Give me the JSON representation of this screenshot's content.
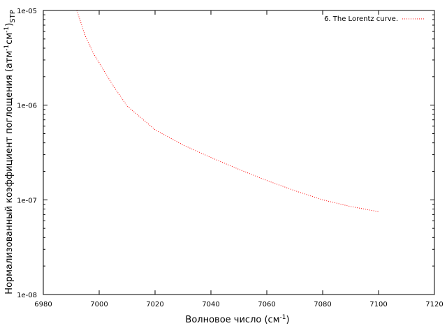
{
  "chart_data": {
    "type": "line",
    "xlabel": "Волновое число (см",
    "xlabel_sup": "-1",
    "xlabel_end": ")",
    "ylabel": "Нормализованный коэффициент поглощения (атм",
    "ylabel_sup1": "-1",
    "ylabel_mid": "см",
    "ylabel_sup2": "-1",
    "ylabel_end": ")",
    "ylabel_sub": "STP",
    "xlim": [
      6980,
      7120
    ],
    "ylim": [
      1e-08,
      1e-05
    ],
    "yscale": "log",
    "xticks": [
      6980,
      7000,
      7020,
      7040,
      7060,
      7080,
      7100,
      7120
    ],
    "xtick_labels": [
      "6980",
      "7000",
      "7020",
      "7040",
      "7060",
      "7080",
      "7100",
      "7120"
    ],
    "yticks": [
      1e-05,
      1e-06,
      1e-07,
      1e-08
    ],
    "ytick_labels": [
      "1e-05",
      "1e-06",
      "1e-07",
      "1e-08"
    ],
    "grid": false,
    "legend_position": "top-right",
    "series": [
      {
        "name": "6. The Lorentz curve.",
        "color": "#ff0000",
        "style": "dotted",
        "x": [
          6992,
          6995,
          6998,
          7000,
          7005,
          7010,
          7020,
          7030,
          7040,
          7050,
          7060,
          7070,
          7080,
          7090,
          7100
        ],
        "y": [
          1e-05,
          5.4e-06,
          3.5e-06,
          2.8e-06,
          1.6e-06,
          9.8e-07,
          5.5e-07,
          3.8e-07,
          2.8e-07,
          2.1e-07,
          1.6e-07,
          1.25e-07,
          1e-07,
          8.5e-08,
          7.5e-08
        ]
      }
    ]
  }
}
